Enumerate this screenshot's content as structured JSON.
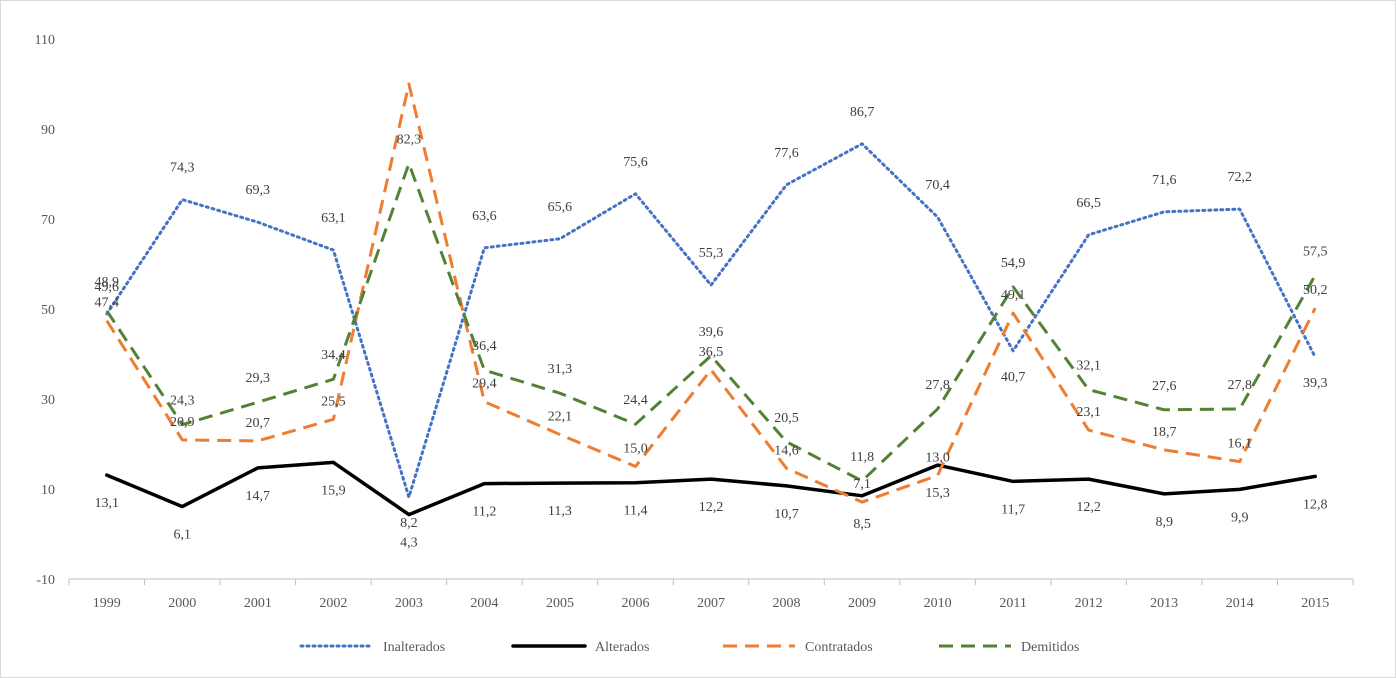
{
  "chart_data": {
    "type": "line",
    "title": "",
    "xlabel": "",
    "ylabel": "",
    "ylim": [
      -10,
      110
    ],
    "yticks": [
      -10,
      10,
      30,
      50,
      70,
      90,
      110
    ],
    "x": [
      "1999",
      "2000",
      "2001",
      "2002",
      "2003",
      "2004",
      "2005",
      "2006",
      "2007",
      "2008",
      "2009",
      "2010",
      "2011",
      "2012",
      "2013",
      "2014",
      "2015"
    ],
    "grid": false,
    "legend": "bottom",
    "series": [
      {
        "name": "Inalterados",
        "color": "#4472C4",
        "dash": "dotted",
        "values": [
          48.9,
          74.3,
          69.3,
          63.1,
          8.2,
          63.6,
          65.6,
          75.6,
          55.3,
          77.6,
          86.7,
          70.4,
          40.7,
          66.5,
          71.6,
          72.2,
          39.3
        ],
        "labels": [
          "48,9",
          "74,3",
          "69,3",
          "63,1",
          "8,2",
          "63,6",
          "65,6",
          "75,6",
          "55,3",
          "77,6",
          "86,7",
          "70,4",
          "40,7",
          "66,5",
          "71,6",
          "72,2",
          "39,3"
        ]
      },
      {
        "name": "Alterados",
        "color": "#000000",
        "dash": "solid",
        "values": [
          13.1,
          6.1,
          14.7,
          15.9,
          4.3,
          11.2,
          11.3,
          11.4,
          12.2,
          10.7,
          8.5,
          15.3,
          11.7,
          12.2,
          8.9,
          9.9,
          12.8
        ],
        "labels": [
          "13,1",
          "6,1",
          "14,7",
          "15,9",
          "4,3",
          "11,2",
          "11,3",
          "11,4",
          "12,2",
          "10,7",
          "8,5",
          "15,3",
          "11,7",
          "12,2",
          "8,9",
          "9,9",
          "12,8"
        ]
      },
      {
        "name": "Contratados",
        "color": "#ED7D31",
        "dash": "dashed",
        "values": [
          47.4,
          20.9,
          20.7,
          25.5,
          100.0,
          29.4,
          22.1,
          15.0,
          36.5,
          14.6,
          7.1,
          13.0,
          49.1,
          23.1,
          18.7,
          16.1,
          50.2
        ],
        "labels": [
          "47,4",
          "20,9",
          "20,7",
          "25,5",
          "",
          "29,4",
          "22,1",
          "15,0",
          "36,5",
          "14,6",
          "7,1",
          "13,0",
          "49,1",
          "23,1",
          "18,7",
          "16,1",
          "50,2"
        ]
      },
      {
        "name": "Demitidos",
        "color": "#548235",
        "dash": "dashed",
        "values": [
          49.6,
          24.3,
          29.3,
          34.4,
          82.3,
          36.4,
          31.3,
          24.4,
          39.6,
          20.5,
          11.8,
          27.8,
          54.9,
          32.1,
          27.6,
          27.8,
          57.5
        ],
        "labels": [
          "49,6",
          "24,3",
          "29,3",
          "34,4",
          "82,3",
          "36,4",
          "31,3",
          "24,4",
          "39,6",
          "20,5",
          "11,8",
          "27,8",
          "54,9",
          "32,1",
          "27,6",
          "27,8",
          "57,5"
        ]
      }
    ]
  }
}
